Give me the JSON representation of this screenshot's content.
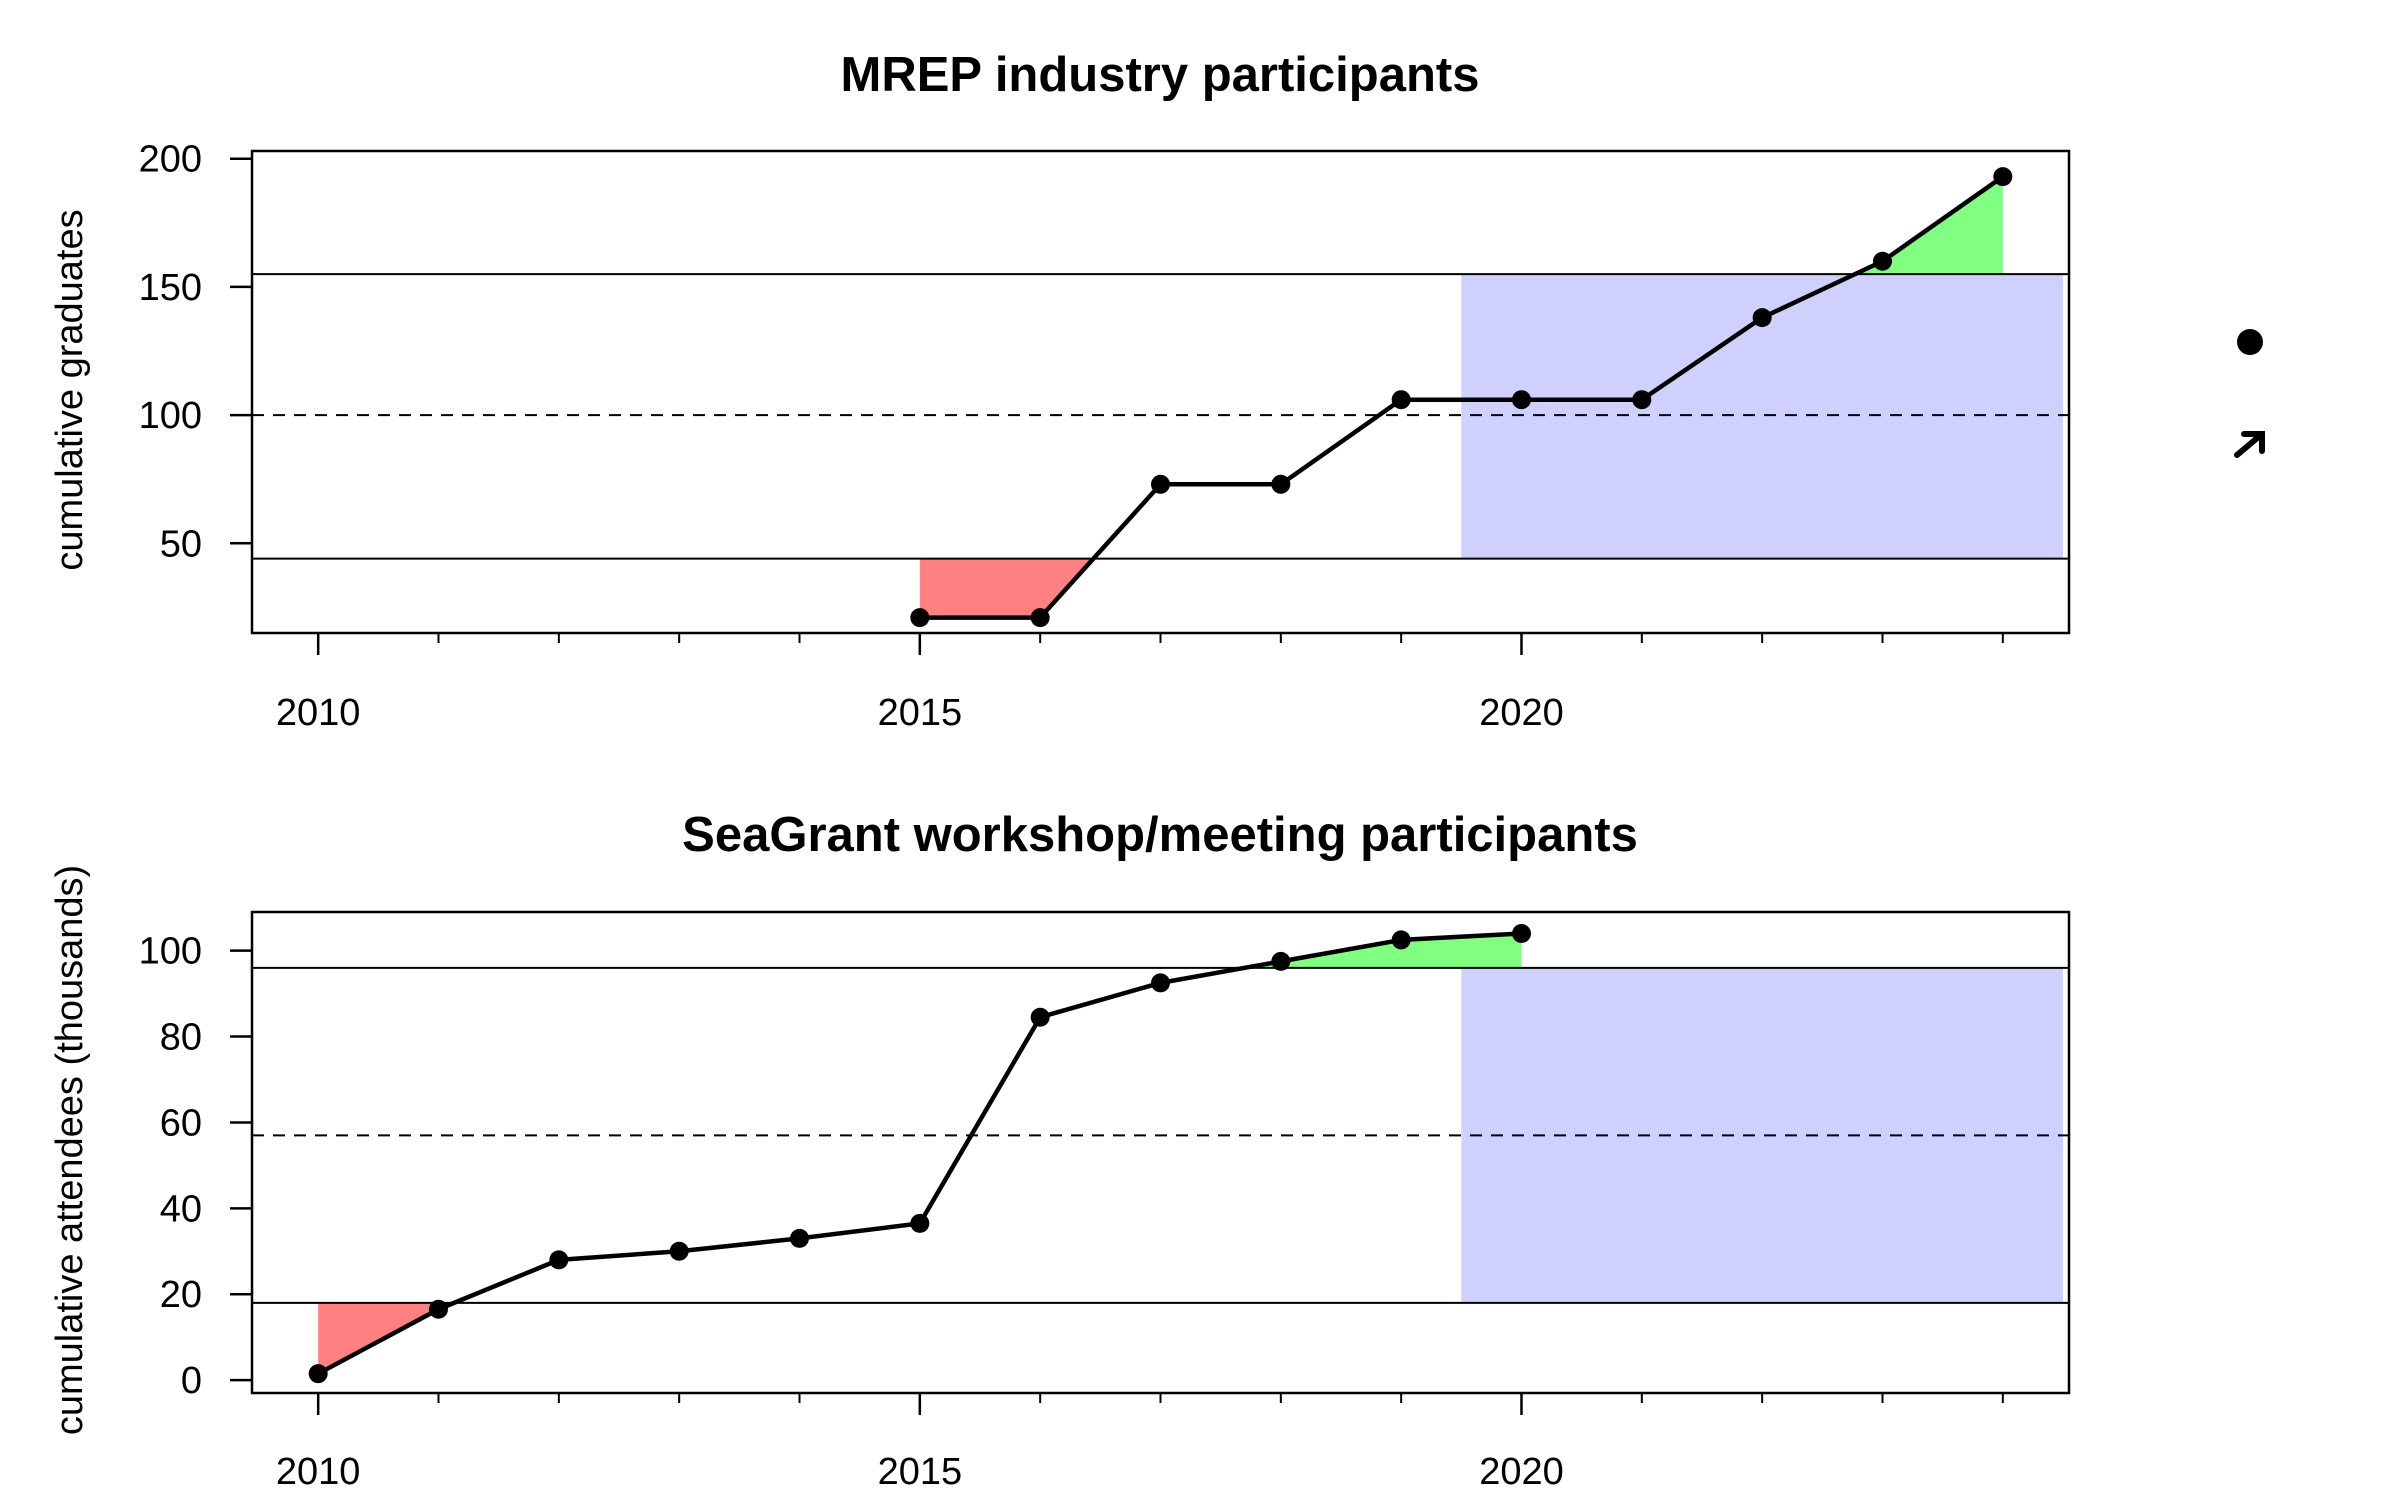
{
  "chart_data": [
    {
      "type": "line",
      "title": "MREP industry participants",
      "xlabel": "",
      "ylabel": "cumulative graduates",
      "xlim": [
        2009.45,
        2024.55
      ],
      "ylim": [
        15,
        203
      ],
      "x_ticks": [
        2010,
        2015,
        2020
      ],
      "x_minor_ticks": [
        2010,
        2011,
        2012,
        2013,
        2014,
        2015,
        2016,
        2017,
        2018,
        2019,
        2020,
        2021,
        2022,
        2023,
        2024
      ],
      "y_ticks": [
        50,
        100,
        150,
        200
      ],
      "mean": 100,
      "upper_sd": 155,
      "lower_sd": 44,
      "trend_window": [
        2019.5,
        2024.5
      ],
      "series": [
        {
          "x": [
            2015,
            2016,
            2017,
            2018,
            2019,
            2020,
            2021,
            2022,
            2023,
            2024
          ],
          "values": [
            21,
            21,
            73,
            73,
            106,
            106,
            106,
            138,
            160,
            193
          ]
        }
      ],
      "grid": false,
      "colors": {
        "above": "#80ff80",
        "below": "#ff8080",
        "window": "#d0d0ff",
        "line": "#000000"
      }
    },
    {
      "type": "line",
      "title": "SeaGrant workshop/meeting participants",
      "xlabel": "",
      "ylabel": "cumulative attendees (thousands)",
      "xlim": [
        2009.45,
        2024.55
      ],
      "ylim": [
        -3,
        109
      ],
      "x_ticks": [
        2010,
        2015,
        2020
      ],
      "x_minor_ticks": [
        2010,
        2011,
        2012,
        2013,
        2014,
        2015,
        2016,
        2017,
        2018,
        2019,
        2020,
        2021,
        2022,
        2023,
        2024
      ],
      "y_ticks": [
        0,
        20,
        40,
        60,
        80,
        100
      ],
      "mean": 57,
      "upper_sd": 96,
      "lower_sd": 18,
      "trend_window": [
        2019.5,
        2024.5
      ],
      "series": [
        {
          "x": [
            2010,
            2011,
            2012,
            2013,
            2014,
            2015,
            2016,
            2017,
            2018,
            2019,
            2020
          ],
          "values": [
            1.5,
            16.5,
            28,
            30,
            33,
            36.5,
            84.5,
            92.5,
            97.5,
            102.5,
            104
          ]
        }
      ],
      "grid": false,
      "colors": {
        "above": "#80ff80",
        "below": "#ff8080",
        "window": "#d0d0ff",
        "line": "#000000"
      }
    }
  ],
  "side_symbols": [
    "filled-circle-icon",
    "arrow-up-right-icon"
  ]
}
